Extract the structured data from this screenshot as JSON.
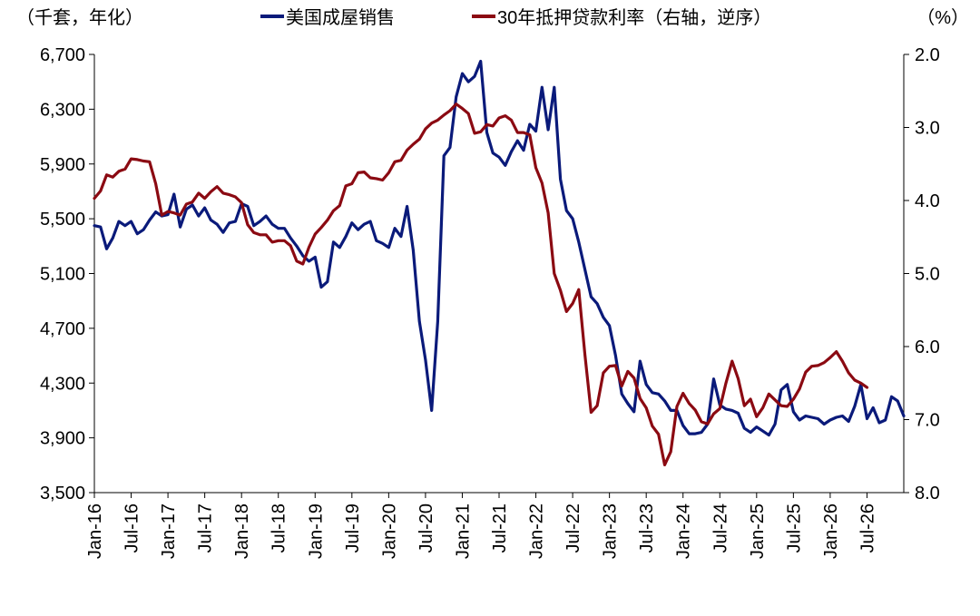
{
  "chart_data": {
    "type": "line",
    "left_unit_label": "（千套，年化）",
    "right_unit_label": "（%）",
    "legend": [
      {
        "name": "美国成屋销售",
        "color": "#0a1a7a"
      },
      {
        "name": "30年抵押贷款利率（右轴，逆序）",
        "color": "#8b0a12"
      }
    ],
    "y_left": {
      "min": 3500,
      "max": 6700,
      "ticks": [
        "3,500",
        "3,900",
        "4,300",
        "4,700",
        "5,100",
        "5,500",
        "5,900",
        "6,300",
        "6,700"
      ]
    },
    "y_right": {
      "min": 2.0,
      "max": 8.0,
      "inverted": true,
      "ticks": [
        "2.0",
        "3.0",
        "4.0",
        "5.0",
        "6.0",
        "7.0",
        "8.0"
      ]
    },
    "x_ticks": [
      "Jan-16",
      "Jul-16",
      "Jan-17",
      "Jul-17",
      "Jan-18",
      "Jul-18",
      "Jan-19",
      "Jul-19",
      "Jan-20",
      "Jul-20",
      "Jan-21",
      "Jul-21",
      "Jan-22",
      "Jul-22",
      "Jan-23",
      "Jul-23",
      "Jan-24",
      "Jul-24",
      "Jan-25",
      "Jul-25",
      "Jan-26",
      "Jul-26"
    ],
    "x_start": "2016-01",
    "series": [
      {
        "name": "美国成屋销售",
        "axis": "left",
        "values": [
          5450,
          5440,
          5280,
          5360,
          5480,
          5450,
          5480,
          5390,
          5420,
          5490,
          5550,
          5520,
          5530,
          5680,
          5440,
          5570,
          5600,
          5520,
          5580,
          5490,
          5460,
          5400,
          5470,
          5480,
          5610,
          5590,
          5450,
          5480,
          5520,
          5460,
          5430,
          5430,
          5360,
          5300,
          5230,
          5190,
          5220,
          5000,
          5040,
          5330,
          5290,
          5370,
          5470,
          5420,
          5460,
          5480,
          5340,
          5320,
          5290,
          5430,
          5370,
          5590,
          5270,
          4750,
          4470,
          4100,
          4750,
          5960,
          6020,
          6390,
          6560,
          6500,
          6540,
          6650,
          6130,
          5980,
          5950,
          5890,
          5990,
          6070,
          6000,
          6190,
          6140,
          6460,
          6150,
          6460,
          5790,
          5560,
          5500,
          5330,
          5130,
          4930,
          4880,
          4780,
          4720,
          4500,
          4220,
          4150,
          4090,
          4460,
          4290,
          4230,
          4220,
          4170,
          4100,
          4100,
          3990,
          3930,
          3930,
          3940,
          4000,
          4330,
          4140,
          4110,
          4100,
          4080,
          3970,
          3940,
          3980,
          3950,
          3920,
          4000,
          4250,
          4290,
          4090,
          4030,
          4060,
          4050,
          4040,
          4000,
          4030,
          4050,
          4060,
          4020,
          4130,
          4290,
          4040,
          4120,
          4010,
          4030,
          4200,
          4170,
          4060
        ]
      },
      {
        "name": "30年抵押贷款利率（右轴，逆序）",
        "axis": "right",
        "values": [
          3.97,
          3.87,
          3.65,
          3.68,
          3.6,
          3.57,
          3.43,
          3.44,
          3.46,
          3.47,
          3.77,
          4.2,
          4.15,
          4.17,
          4.2,
          4.05,
          4.02,
          3.9,
          3.97,
          3.88,
          3.81,
          3.9,
          3.92,
          3.95,
          4.03,
          4.33,
          4.44,
          4.47,
          4.47,
          4.57,
          4.55,
          4.55,
          4.62,
          4.83,
          4.87,
          4.64,
          4.46,
          4.37,
          4.27,
          4.14,
          4.07,
          3.8,
          3.77,
          3.62,
          3.61,
          3.69,
          3.7,
          3.72,
          3.62,
          3.47,
          3.45,
          3.31,
          3.23,
          3.16,
          3.02,
          2.94,
          2.9,
          2.83,
          2.77,
          2.68,
          2.74,
          2.81,
          3.08,
          3.06,
          2.96,
          2.98,
          2.87,
          2.84,
          2.9,
          3.07,
          3.07,
          3.1,
          3.55,
          3.76,
          4.17,
          5.0,
          5.23,
          5.52,
          5.41,
          5.22,
          6.11,
          6.9,
          6.81,
          6.36,
          6.27,
          6.26,
          6.54,
          6.34,
          6.43,
          6.71,
          6.84,
          7.09,
          7.2,
          7.62,
          7.44,
          6.82,
          6.64,
          6.78,
          6.87,
          7.03,
          7.06,
          6.92,
          6.85,
          6.5,
          6.2,
          6.44,
          6.81,
          6.72,
          6.96,
          6.84,
          6.65,
          6.73,
          6.81,
          6.82,
          6.72,
          6.58,
          6.35,
          6.27,
          6.26,
          6.22,
          6.15,
          6.07,
          6.2,
          6.36,
          6.46,
          6.5,
          6.56
        ]
      }
    ]
  }
}
